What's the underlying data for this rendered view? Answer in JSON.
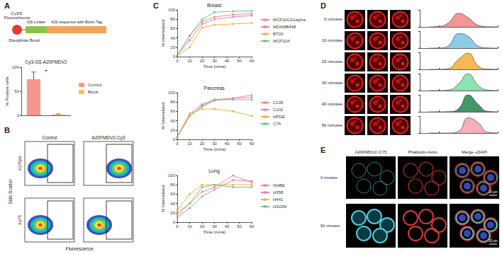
{
  "panel_labels": [
    "A",
    "B",
    "C",
    "D",
    "E"
  ],
  "schematic": {
    "fluorochrome": "Cy3/5 Fluorochrome",
    "linker": "GS Linker",
    "sequence": "A20 sequence with Biotin Tag",
    "bond": "Disulphide Bond"
  },
  "flow": {
    "columns": [
      "Control",
      "A20FMDV2-Cy3"
    ],
    "rows": [
      "A375β6",
      "A375"
    ],
    "y_label": "Side Scatter",
    "x_label": "Fluorescence"
  },
  "microscopy_e": {
    "columns": [
      "A20FMDV2-CY5",
      "Phalloidin-Actin",
      "Merge +DAPI"
    ],
    "rows": [
      "0 minutes",
      "60 minutes"
    ],
    "scale_bar": "20 µm"
  },
  "chart_data": [
    {
      "type": "bar",
      "title": "Cy3-GS-A20FMDV2",
      "y_label": "% Positive cells",
      "categories": [
        "Control",
        "Block"
      ],
      "values": [
        75,
        2
      ],
      "errors": [
        15,
        1
      ],
      "colors": [
        "#f4978e",
        "#f6bd60"
      ],
      "ylim": [
        0,
        100
      ],
      "yticks": [
        0,
        50,
        100
      ],
      "grid": false,
      "legend": "right",
      "tick_labels": "y",
      "annotations": [
        "*"
      ]
    },
    {
      "type": "line",
      "title": "Breast",
      "x_label": "Time (mins)",
      "y_label": "% Internalised",
      "x": [
        0,
        10,
        20,
        30,
        45,
        60
      ],
      "series": [
        {
          "name": "MCF10CA1alpha",
          "color": "#f28b82",
          "values": [
            2,
            45,
            75,
            85,
            90,
            92
          ]
        },
        {
          "name": "MDAMB468",
          "color": "#e882b0",
          "values": [
            3,
            35,
            70,
            80,
            85,
            88
          ]
        },
        {
          "name": "BT20",
          "color": "#f5b041",
          "values": [
            2,
            20,
            62,
            68,
            70,
            72
          ]
        },
        {
          "name": "MCF10A",
          "color": "#6cc58f",
          "values": [
            2,
            45,
            80,
            95,
            97,
            98
          ]
        }
      ],
      "xlim": [
        0,
        60
      ],
      "xticks": [
        0,
        10,
        20,
        30,
        40,
        50,
        60
      ],
      "ylim": [
        0,
        100
      ],
      "yticks": [
        0,
        20,
        40,
        60,
        80,
        100
      ],
      "grid": false,
      "legend": "right",
      "marker": "circle",
      "line_style": "solid"
    },
    {
      "type": "line",
      "title": "Pancreas",
      "x_label": "Time (mins)",
      "y_label": "% Internalised",
      "x": [
        0,
        10,
        20,
        30,
        45,
        60
      ],
      "series": [
        {
          "name": "C139",
          "color": "#f28b82",
          "values": [
            5,
            55,
            75,
            85,
            88,
            95
          ]
        },
        {
          "name": "C102",
          "color": "#e882b0",
          "values": [
            5,
            50,
            70,
            83,
            88,
            90
          ]
        },
        {
          "name": "HPDE",
          "color": "#f5b041",
          "values": [
            5,
            55,
            65,
            65,
            60,
            50
          ]
        },
        {
          "name": "C76",
          "color": "#6cc58f",
          "values": [
            5,
            50,
            72,
            85,
            85,
            85
          ]
        }
      ],
      "xlim": [
        0,
        60
      ],
      "xticks": [
        0,
        10,
        20,
        30,
        40,
        50,
        60
      ],
      "ylim": [
        0,
        100
      ],
      "yticks": [
        0,
        20,
        40,
        60,
        80,
        100
      ],
      "grid": false,
      "legend": "right",
      "marker": "circle",
      "line_style": "solid"
    },
    {
      "type": "line",
      "title": "Lung",
      "x_label": "Time (mins)",
      "y_label": "% Internalised",
      "x": [
        0,
        10,
        20,
        30,
        45,
        60
      ],
      "series": [
        {
          "name": "NHBE",
          "color": "#f28b82",
          "values": [
            20,
            40,
            65,
            75,
            100,
            85
          ]
        },
        {
          "name": "H358",
          "color": "#e882b0",
          "values": [
            10,
            30,
            55,
            70,
            90,
            88
          ]
        },
        {
          "name": "H441",
          "color": "#f5b041",
          "values": [
            25,
            60,
            80,
            80,
            80,
            80
          ]
        },
        {
          "name": "H322M",
          "color": "#6cc58f",
          "values": [
            15,
            40,
            75,
            80,
            75,
            75
          ]
        }
      ],
      "xlim": [
        0,
        60
      ],
      "xticks": [
        0,
        10,
        20,
        30,
        40,
        50,
        60
      ],
      "ylim": [
        0,
        100
      ],
      "yticks": [
        0,
        20,
        40,
        60,
        80,
        100
      ],
      "grid": false,
      "legend": "right",
      "marker": "circle",
      "line_style": "solid"
    },
    {
      "type": "area",
      "log": "x",
      "x": [
        30,
        100,
        300,
        1000,
        3000,
        10000,
        30000,
        100000
      ],
      "series": [
        {
          "name": "0 minutes",
          "color": "#f28b8b",
          "values": [
            0,
            3,
            25,
            80,
            55,
            10,
            1,
            0
          ]
        },
        {
          "name": "10 minutes",
          "color": "#7ec8e3",
          "values": [
            0,
            1,
            15,
            85,
            70,
            12,
            1,
            0
          ]
        },
        {
          "name": "20 minutes",
          "color": "#f5b041",
          "values": [
            0,
            0,
            5,
            60,
            95,
            20,
            2,
            0
          ]
        },
        {
          "name": "30 minutes",
          "color": "#82e0aa",
          "values": [
            0,
            0,
            3,
            40,
            100,
            30,
            3,
            0
          ]
        },
        {
          "name": "40 minutes",
          "color": "#2e8b57",
          "values": [
            0,
            0,
            1,
            20,
            100,
            45,
            3,
            0
          ]
        },
        {
          "name": "50 minutes",
          "color": "#f4a6b6",
          "values": [
            0,
            0,
            0,
            10,
            90,
            60,
            5,
            0
          ]
        }
      ],
      "xlim": [
        10,
        100000
      ],
      "xticks": [
        10,
        100,
        1000,
        10000,
        100000
      ],
      "ylim": [
        0,
        100
      ],
      "yticks": [
        0,
        100
      ],
      "grid": false,
      "tick_labels": false
    }
  ]
}
